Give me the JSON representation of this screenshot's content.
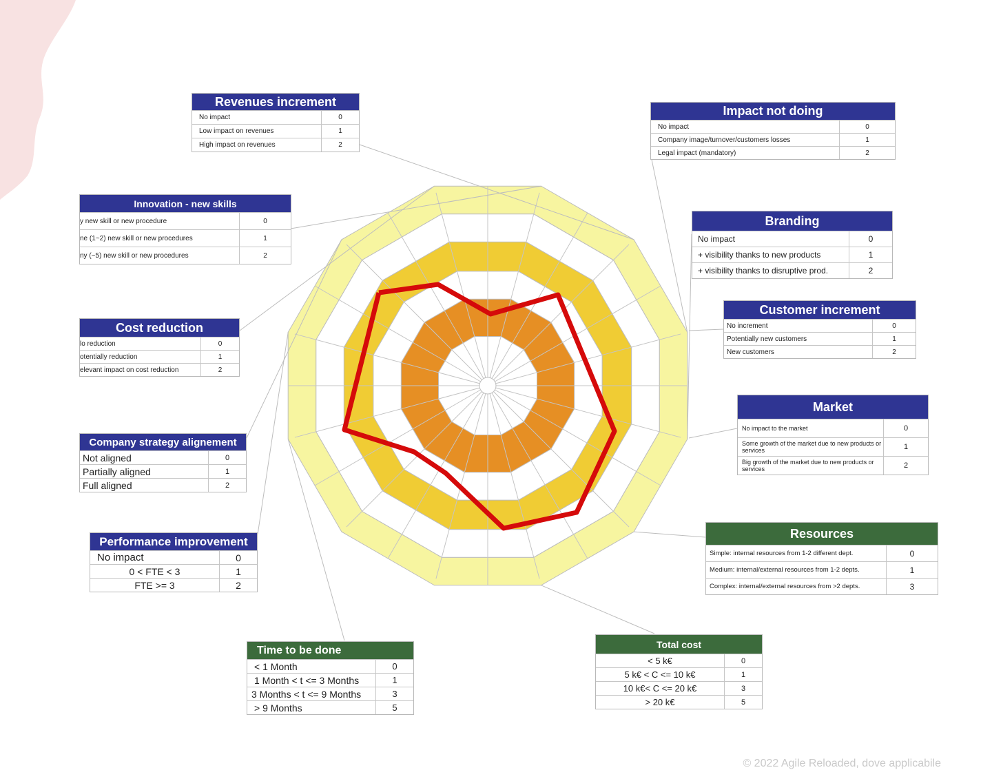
{
  "colors": {
    "blue_header": "#2f3593",
    "green_header": "#3c6b3c",
    "ring_outer": "#f7f5a0",
    "ring_mid": "#f0cc34",
    "ring_inner": "#e68f24",
    "profile_line": "#d50a0a",
    "pink_blob": "#f8e2e2"
  },
  "tables": [
    {
      "id": "revenues",
      "title": "Revenues increment",
      "rows": [
        {
          "label": "No impact",
          "value": "0"
        },
        {
          "label": "Low impact on revenues",
          "value": "1"
        },
        {
          "label": "High impact on revenues",
          "value": "2"
        }
      ]
    },
    {
      "id": "impact-not-doing",
      "title": "Impact not doing",
      "rows": [
        {
          "label": "No impact",
          "value": "0"
        },
        {
          "label": "Company image/turnover/customers losses",
          "value": "1"
        },
        {
          "label": "Legal impact (mandatory)",
          "value": "2"
        }
      ]
    },
    {
      "id": "innovation",
      "title": "Innovation - new skills",
      "rows": [
        {
          "label": "y new skill or new procedure",
          "value": "0"
        },
        {
          "label": "ne (1~2) new skill or new procedures",
          "value": "1"
        },
        {
          "label": "ny (~5) new skill or new procedures",
          "value": "2"
        }
      ]
    },
    {
      "id": "branding",
      "title": "Branding",
      "rows": [
        {
          "label": "No impact",
          "value": "0"
        },
        {
          "label": "+ visibility thanks to new products",
          "value": "1"
        },
        {
          "label": "+ visibility thanks to disruptive prod.",
          "value": "2"
        }
      ]
    },
    {
      "id": "customer",
      "title": "Customer increment",
      "rows": [
        {
          "label": "No increment",
          "value": "0"
        },
        {
          "label": "Potentially new customers",
          "value": "1"
        },
        {
          "label": "New customers",
          "value": "2"
        }
      ]
    },
    {
      "id": "cost-reduction",
      "title": "Cost reduction",
      "rows": [
        {
          "label": "lo reduction",
          "value": "0"
        },
        {
          "label": "otentially reduction",
          "value": "1"
        },
        {
          "label": "elevant impact on cost reduction",
          "value": "2"
        }
      ]
    },
    {
      "id": "market",
      "title": "Market",
      "rows": [
        {
          "label": "No impact to the market",
          "value": "0"
        },
        {
          "label": "Some growth of the market due to new products or services",
          "value": "1"
        },
        {
          "label": "Big growth of the market due to new products or services",
          "value": "2"
        }
      ]
    },
    {
      "id": "strategy",
      "title": "Company strategy alignement",
      "rows": [
        {
          "label": "Not aligned",
          "value": "0"
        },
        {
          "label": "Partially aligned",
          "value": "1"
        },
        {
          "label": "Full aligned",
          "value": "2"
        }
      ]
    },
    {
      "id": "resources",
      "title": "Resources",
      "rows": [
        {
          "label": "Simple: internal resources from 1-2 different dept.",
          "value": "0"
        },
        {
          "label": "Medium: internal/external resources from 1-2 depts.",
          "value": "1"
        },
        {
          "label": "Complex: internal/external resources from >2 depts.",
          "value": "3"
        }
      ]
    },
    {
      "id": "performance",
      "title": "Performance improvement",
      "rows": [
        {
          "label": "No impact",
          "value": "0"
        },
        {
          "label": "0 < FTE < 3",
          "value": "1"
        },
        {
          "label": "FTE >= 3",
          "value": "2"
        }
      ]
    },
    {
      "id": "total-cost",
      "title": "Total cost",
      "rows": [
        {
          "label": "< 5 k€",
          "value": "0"
        },
        {
          "label": "5 k€ < C <= 10 k€",
          "value": "1"
        },
        {
          "label": "10 k€< C <= 20 k€",
          "value": "3"
        },
        {
          "label": "> 20 k€",
          "value": "5"
        }
      ]
    },
    {
      "id": "time",
      "title": "Time to be done",
      "rows": [
        {
          "label": "< 1 Month",
          "value": "0"
        },
        {
          "label": "1 Month < t <= 3 Months",
          "value": "1"
        },
        {
          "label": "3 Months < t <= 9 Months",
          "value": "3"
        },
        {
          "label": "> 9 Months",
          "value": "5"
        }
      ]
    }
  ],
  "copyright": "© 2022 Agile Reloaded, dove applicabile"
}
